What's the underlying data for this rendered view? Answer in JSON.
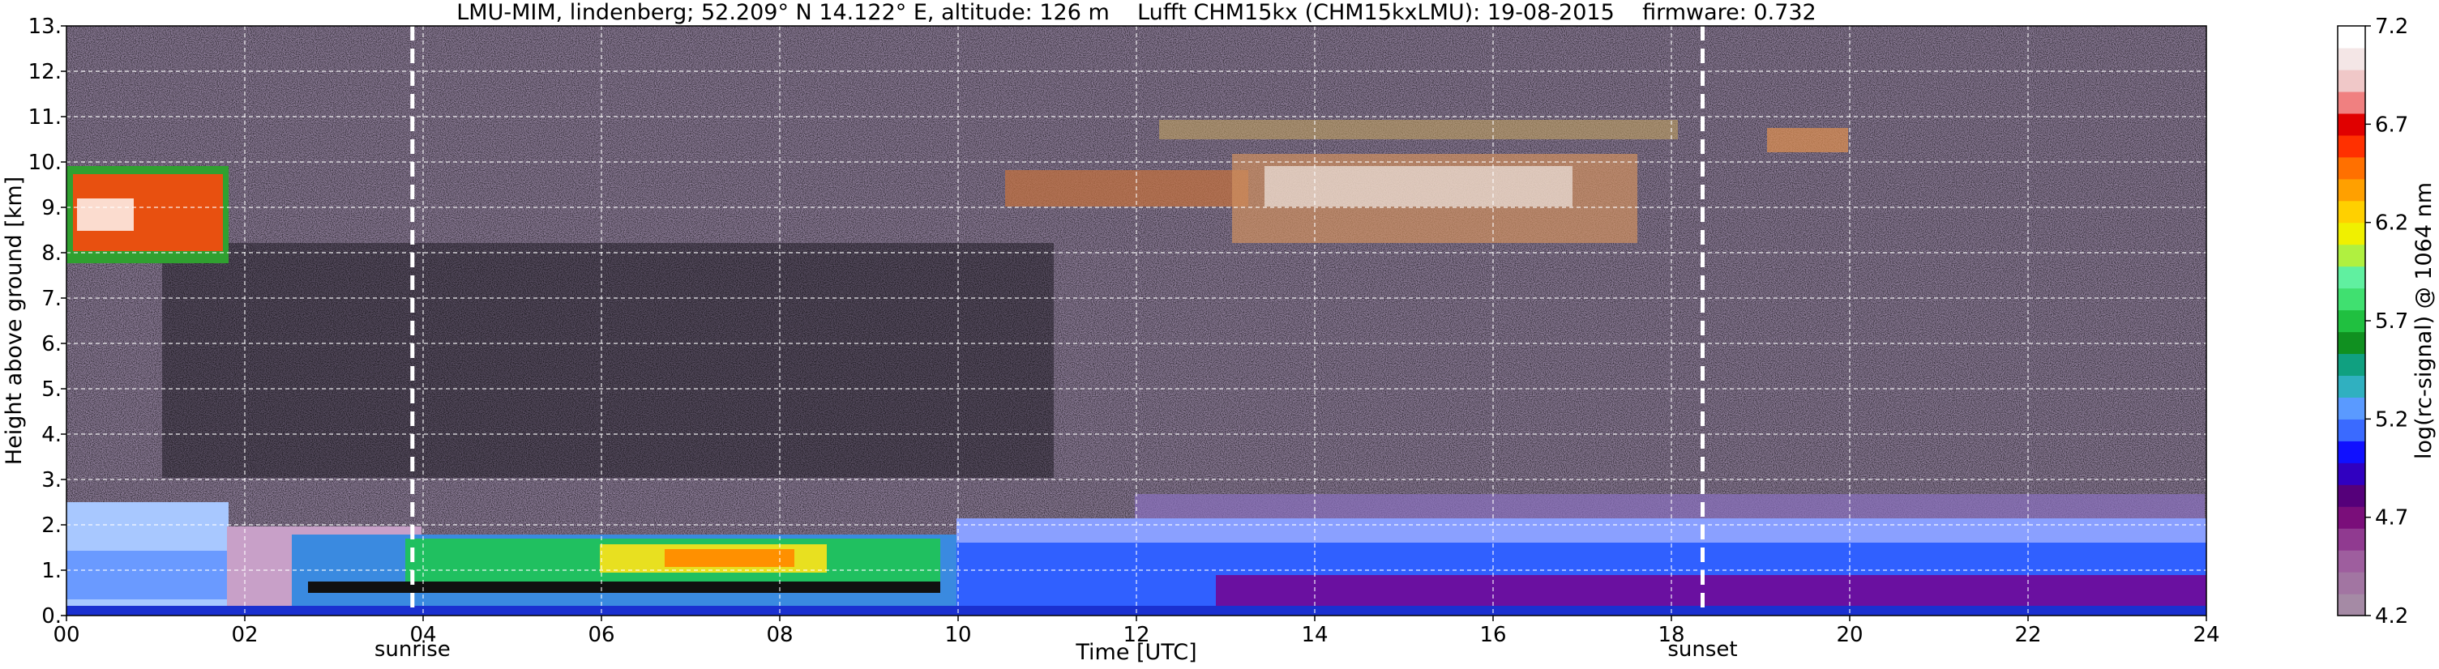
{
  "chart_data": {
    "type": "heatmap",
    "title": "LMU-MIM, lindenberg; 52.209° N 14.122° E, altitude: 126 m    Lufft CHM15kx (CHM15kxLMU): 19-08-2015    firmware: 0.732",
    "xlabel": "Time [UTC]",
    "ylabel": "Height above ground [km]",
    "xlim": [
      0,
      24
    ],
    "ylim": [
      0,
      13
    ],
    "x_ticks": [
      "00",
      "02",
      "04",
      "06",
      "08",
      "10",
      "12",
      "14",
      "16",
      "18",
      "20",
      "22",
      "24"
    ],
    "y_ticks": [
      "0.",
      "1.",
      "2.",
      "3.",
      "4.",
      "5.",
      "6.",
      "7.",
      "8.",
      "9.",
      "10.",
      "11.",
      "12.",
      "13."
    ],
    "grid": true,
    "colorbar": {
      "label": "log(rc-signal) @ 1064 nm",
      "range": [
        4.2,
        7.2
      ],
      "ticks": [
        "4.2",
        "4.7",
        "5.2",
        "5.7",
        "6.2",
        "6.7",
        "7.2"
      ],
      "colors": [
        "#a58aa5",
        "#a275a2",
        "#9e5e9e",
        "#903a90",
        "#7a0e7a",
        "#55007a",
        "#3000c0",
        "#1010ff",
        "#3a6aff",
        "#5a9aff",
        "#30b0c0",
        "#10a080",
        "#109020",
        "#20c040",
        "#40e070",
        "#60f0a0",
        "#b0f040",
        "#f0f000",
        "#ffd000",
        "#ffa000",
        "#ff7000",
        "#ff3000",
        "#e00000",
        "#f08080",
        "#f0c8c8",
        "#f4e6e6",
        "#ffffff"
      ]
    },
    "annotations": [
      {
        "x": 3.88,
        "label": "sunrise"
      },
      {
        "x": 18.35,
        "label": "sunset"
      }
    ]
  }
}
